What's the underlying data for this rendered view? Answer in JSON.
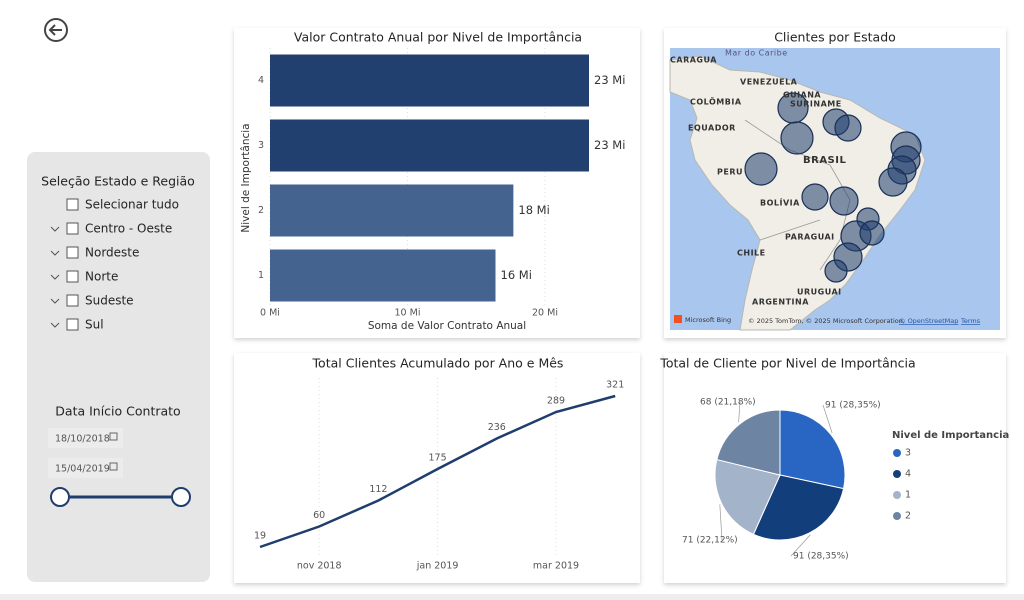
{
  "filters": {
    "region": {
      "title": "Seleção Estado e Região",
      "items": [
        "Selecionar tudo",
        "Centro - Oeste",
        "Nordeste",
        "Norte",
        "Sudeste",
        "Sul"
      ]
    },
    "date": {
      "title": "Data Início Contrato",
      "start": "18/10/2018",
      "end": "15/04/2019"
    }
  },
  "map": {
    "title": "Clientes por Estado",
    "labels": [
      "Mar do Caribe",
      "CARAGUA",
      "VENEZUELA",
      "GUIANA",
      "SURINAME",
      "COLÔMBIA",
      "EQUADOR",
      "PERU",
      "BRASIL",
      "BOLÍVIA",
      "PARAGUAI",
      "CHILE",
      "URUGUAI",
      "ARGENTINA"
    ],
    "brand": "Microsoft Bing",
    "attribution": "© 2025 TomTom, © 2025 Microsoft Corporation,",
    "osm": "© OpenStreetMap",
    "terms": "Terms"
  },
  "chart_data": [
    {
      "type": "bar",
      "orientation": "horizontal",
      "title": "Valor Contrato Anual por Nivel de Importância",
      "x_label": "Soma de Valor Contrato Anual",
      "y_label": "Nivel de Importância",
      "categories": [
        "4",
        "3",
        "2",
        "1"
      ],
      "values": [
        23.2,
        23.2,
        17.7,
        16.4
      ],
      "value_labels": [
        "23 Mi",
        "23 Mi",
        "18 Mi",
        "16 Mi"
      ],
      "colors": [
        "#213f6f",
        "#213f6f",
        "#45638f",
        "#45638f"
      ],
      "xlim": [
        0,
        25.5
      ],
      "xticks": [
        {
          "value": 0,
          "label": "0 Mi"
        },
        {
          "value": 10,
          "label": "10 Mi"
        },
        {
          "value": 20,
          "label": "20 Mi"
        }
      ],
      "grid": true
    },
    {
      "type": "line",
      "title": "Total Clientes Acumulado por Ano e Mês",
      "categories": [
        null,
        "nov 2018",
        null,
        "jan 2019",
        null,
        "mar 2019",
        null
      ],
      "values": [
        19,
        60,
        112,
        175,
        236,
        289,
        321
      ],
      "color": "#1f3e6e",
      "ylim": [
        0,
        340
      ],
      "grid": true
    },
    {
      "type": "pie",
      "title": "Total de Cliente por Nivel de Importância",
      "legend_title": "Nivel de Importancia",
      "categories": [
        "3",
        "4",
        "1",
        "2"
      ],
      "values": [
        91,
        91,
        71,
        68
      ],
      "value_labels": [
        "91 (28,35%)",
        "91 (28,35%)",
        "71 (22,12%)",
        "68 (21,18%)"
      ],
      "colors": [
        "#2966c4",
        "#123e7c",
        "#a3b3c9",
        "#6e84a3"
      ],
      "legend": "right"
    }
  ]
}
